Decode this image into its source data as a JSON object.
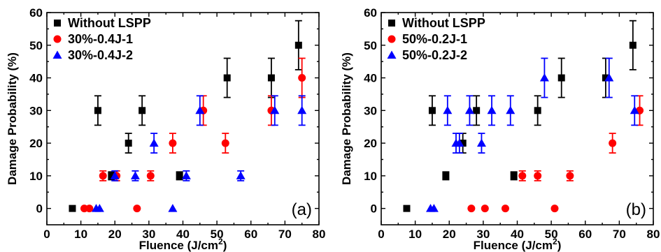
{
  "chart_data": [
    {
      "type": "scatter",
      "panel_label": "(a)",
      "xlabel": "Fluence (J/cm",
      "xlabel_sup": "2",
      "xlabel_close": ")",
      "ylabel": "Damage Probability (%)",
      "xlim": [
        0,
        80
      ],
      "ylim": [
        -5,
        60
      ],
      "xticks": [
        0,
        10,
        20,
        30,
        40,
        50,
        60,
        70,
        80
      ],
      "yticks": [
        0,
        10,
        20,
        30,
        40,
        50,
        60
      ],
      "legend_position": "top-left",
      "series": [
        {
          "name": "Without LSPP",
          "color": "#000000",
          "marker": "square",
          "points": [
            {
              "x": 7.5,
              "y": 0,
              "err": 0
            },
            {
              "x": 15,
              "y": 30,
              "err": 4.5
            },
            {
              "x": 19,
              "y": 10,
              "err": 1.2
            },
            {
              "x": 24,
              "y": 20,
              "err": 3
            },
            {
              "x": 28,
              "y": 30,
              "err": 4.5
            },
            {
              "x": 39,
              "y": 10,
              "err": 1.2
            },
            {
              "x": 53,
              "y": 40,
              "err": 6
            },
            {
              "x": 66,
              "y": 40,
              "err": 6
            },
            {
              "x": 74,
              "y": 50,
              "err": 7.5
            }
          ]
        },
        {
          "name": "30%-0.4J-1",
          "color": "#ff0000",
          "marker": "circle",
          "points": [
            {
              "x": 11,
              "y": 0,
              "err": 0
            },
            {
              "x": 12.5,
              "y": 0,
              "err": 0
            },
            {
              "x": 16.5,
              "y": 10,
              "err": 1.5
            },
            {
              "x": 20.5,
              "y": 10,
              "err": 1.5
            },
            {
              "x": 26.5,
              "y": 0,
              "err": 0
            },
            {
              "x": 30.5,
              "y": 10,
              "err": 1.5
            },
            {
              "x": 37,
              "y": 20,
              "err": 3
            },
            {
              "x": 46,
              "y": 30,
              "err": 4.5
            },
            {
              "x": 52.5,
              "y": 20,
              "err": 3
            },
            {
              "x": 66,
              "y": 30,
              "err": 4.5
            },
            {
              "x": 75,
              "y": 40,
              "err": 6
            }
          ]
        },
        {
          "name": "30%-0.4J-2",
          "color": "#0000ff",
          "marker": "triangle",
          "points": [
            {
              "x": 14.5,
              "y": 0,
              "err": 0
            },
            {
              "x": 15.5,
              "y": 0,
              "err": 0
            },
            {
              "x": 20,
              "y": 10,
              "err": 1.5
            },
            {
              "x": 26,
              "y": 10,
              "err": 1.5
            },
            {
              "x": 31.5,
              "y": 20,
              "err": 3
            },
            {
              "x": 37,
              "y": 0,
              "err": 0
            },
            {
              "x": 41,
              "y": 10,
              "err": 1.5
            },
            {
              "x": 45,
              "y": 30,
              "err": 4.5
            },
            {
              "x": 57,
              "y": 10,
              "err": 1.5
            },
            {
              "x": 67,
              "y": 30,
              "err": 4.5
            },
            {
              "x": 75,
              "y": 30,
              "err": 4.5
            }
          ]
        }
      ]
    },
    {
      "type": "scatter",
      "panel_label": "(b)",
      "xlabel": "Fluence (J/cm",
      "xlabel_sup": "2",
      "xlabel_close": ")",
      "ylabel": "Damage Probability (%)",
      "xlim": [
        0,
        80
      ],
      "ylim": [
        -5,
        60
      ],
      "xticks": [
        0,
        10,
        20,
        30,
        40,
        50,
        60,
        70,
        80
      ],
      "yticks": [
        0,
        10,
        20,
        30,
        40,
        50,
        60
      ],
      "legend_position": "top-left",
      "series": [
        {
          "name": "Without LSPP",
          "color": "#000000",
          "marker": "square",
          "points": [
            {
              "x": 7.5,
              "y": 0,
              "err": 0
            },
            {
              "x": 15,
              "y": 30,
              "err": 4.5
            },
            {
              "x": 19,
              "y": 10,
              "err": 1.2
            },
            {
              "x": 24,
              "y": 20,
              "err": 3
            },
            {
              "x": 28,
              "y": 30,
              "err": 4.5
            },
            {
              "x": 39,
              "y": 10,
              "err": 1.2
            },
            {
              "x": 46,
              "y": 30,
              "err": 4.5
            },
            {
              "x": 53,
              "y": 40,
              "err": 6
            },
            {
              "x": 66,
              "y": 40,
              "err": 6
            },
            {
              "x": 74,
              "y": 50,
              "err": 7.5
            }
          ]
        },
        {
          "name": "50%-0.2J-1",
          "color": "#ff0000",
          "marker": "circle",
          "points": [
            {
              "x": 26.5,
              "y": 0,
              "err": 0
            },
            {
              "x": 30.5,
              "y": 0,
              "err": 0
            },
            {
              "x": 36.5,
              "y": 0,
              "err": 0
            },
            {
              "x": 41.5,
              "y": 10,
              "err": 1.5
            },
            {
              "x": 46,
              "y": 10,
              "err": 1.5
            },
            {
              "x": 51,
              "y": 0,
              "err": 0
            },
            {
              "x": 55.5,
              "y": 10,
              "err": 1.5
            },
            {
              "x": 68,
              "y": 20,
              "err": 3
            },
            {
              "x": 76,
              "y": 30,
              "err": 4.5
            }
          ]
        },
        {
          "name": "50%-0.2J-2",
          "color": "#0000ff",
          "marker": "triangle",
          "points": [
            {
              "x": 14.5,
              "y": 0,
              "err": 0
            },
            {
              "x": 15.5,
              "y": 0,
              "err": 0
            },
            {
              "x": 19.5,
              "y": 30,
              "err": 4.5
            },
            {
              "x": 22,
              "y": 20,
              "err": 3
            },
            {
              "x": 23,
              "y": 20,
              "err": 3
            },
            {
              "x": 26,
              "y": 30,
              "err": 4.5
            },
            {
              "x": 29.5,
              "y": 20,
              "err": 3
            },
            {
              "x": 32.5,
              "y": 30,
              "err": 4.5
            },
            {
              "x": 38,
              "y": 30,
              "err": 4.5
            },
            {
              "x": 48,
              "y": 40,
              "err": 6
            },
            {
              "x": 67,
              "y": 40,
              "err": 6
            },
            {
              "x": 74.5,
              "y": 30,
              "err": 4.5
            }
          ]
        }
      ]
    }
  ]
}
